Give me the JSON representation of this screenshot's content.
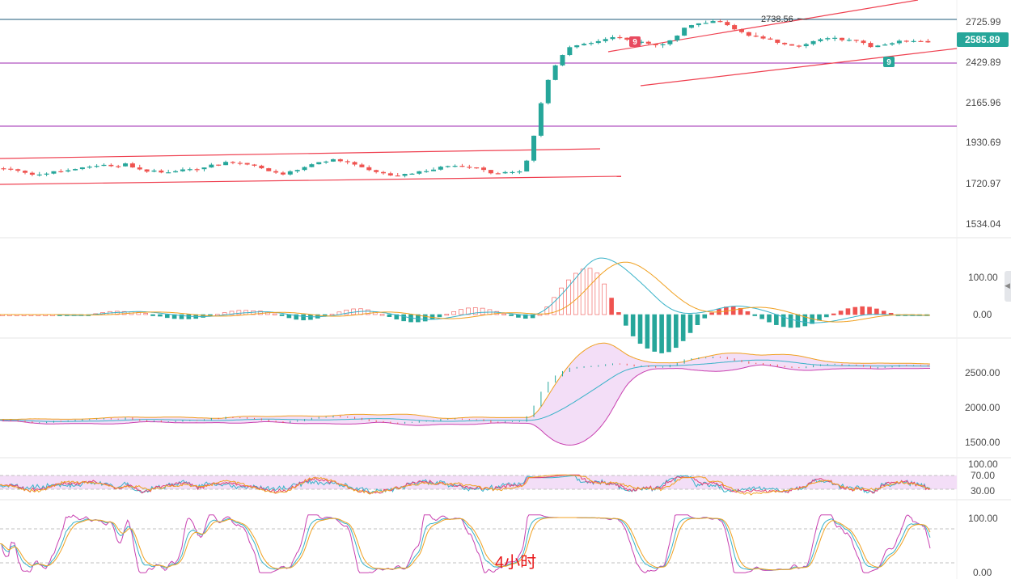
{
  "timeframe": "4小时",
  "colors": {
    "up": "#26a69a",
    "down": "#ef5350",
    "ma_fast": "#38b2c8",
    "ma_slow": "#f0a020",
    "channel": "#ef4050",
    "level": "#9c27b0",
    "resistance": "#1e5a7a"
  },
  "panels": {
    "price": {
      "ticks": [
        "2725.99",
        "2429.89",
        "2165.96",
        "1930.69",
        "1720.97",
        "1534.04"
      ],
      "current_price": "2585.89",
      "high_label": "2738.56",
      "td_markers": [
        "9",
        "9"
      ]
    },
    "macd": {
      "ticks": [
        "100.00",
        "0.00"
      ]
    },
    "bands": {
      "ticks": [
        "2500.00",
        "2000.00",
        "1500.00"
      ]
    },
    "rsi": {
      "ticks": [
        "100.00",
        "70.00",
        "30.00"
      ]
    },
    "kdj": {
      "ticks": [
        "100.00",
        "0.00"
      ]
    }
  },
  "chart_data": {
    "type": "candlestick",
    "timeframe": "4小时",
    "price_axis_ticks": [
      2725.99,
      2429.89,
      2165.96,
      1930.69,
      1720.97,
      1534.04
    ],
    "current_price": 2585.89,
    "annotated_high": 2738.56,
    "horizontal_levels": [
      2725.99,
      2440,
      2050
    ],
    "close_path": [
      [
        0,
        1810
      ],
      [
        10,
        1805
      ],
      [
        20,
        1780
      ],
      [
        30,
        1770
      ],
      [
        40,
        1790
      ],
      [
        50,
        1800
      ],
      [
        60,
        1815
      ],
      [
        70,
        1830
      ],
      [
        80,
        1820
      ],
      [
        90,
        1835
      ],
      [
        100,
        1800
      ],
      [
        110,
        1790
      ],
      [
        120,
        1790
      ],
      [
        130,
        1810
      ],
      [
        140,
        1800
      ],
      [
        150,
        1830
      ],
      [
        160,
        1845
      ],
      [
        170,
        1835
      ],
      [
        180,
        1820
      ],
      [
        190,
        1790
      ],
      [
        200,
        1775
      ],
      [
        210,
        1800
      ],
      [
        220,
        1840
      ],
      [
        230,
        1860
      ],
      [
        240,
        1860
      ],
      [
        250,
        1830
      ],
      [
        260,
        1800
      ],
      [
        270,
        1775
      ],
      [
        280,
        1765
      ],
      [
        290,
        1780
      ],
      [
        300,
        1800
      ],
      [
        310,
        1820
      ],
      [
        320,
        1830
      ],
      [
        330,
        1820
      ],
      [
        340,
        1790
      ],
      [
        350,
        1780
      ],
      [
        360,
        1790
      ],
      [
        365,
        1790
      ],
      [
        370,
        1880
      ],
      [
        375,
        2050
      ],
      [
        380,
        2250
      ],
      [
        385,
        2380
      ],
      [
        390,
        2460
      ],
      [
        395,
        2520
      ],
      [
        400,
        2560
      ],
      [
        410,
        2580
      ],
      [
        420,
        2600
      ],
      [
        430,
        2620
      ],
      [
        440,
        2600
      ],
      [
        450,
        2580
      ],
      [
        460,
        2560
      ],
      [
        470,
        2600
      ],
      [
        480,
        2680
      ],
      [
        490,
        2700
      ],
      [
        500,
        2720
      ],
      [
        510,
        2680
      ],
      [
        520,
        2640
      ],
      [
        530,
        2620
      ],
      [
        540,
        2600
      ],
      [
        550,
        2570
      ],
      [
        560,
        2560
      ],
      [
        570,
        2590
      ],
      [
        580,
        2610
      ],
      [
        590,
        2600
      ],
      [
        600,
        2590
      ],
      [
        610,
        2560
      ],
      [
        620,
        2575
      ],
      [
        630,
        2590
      ],
      [
        640,
        2600
      ],
      [
        649,
        2585.89
      ]
    ],
    "indicators": [
      "MACD",
      "Bollinger Bands",
      "RSI",
      "KDJ"
    ],
    "indicator_ticks": {
      "MACD": [
        100,
        0
      ],
      "Bollinger Bands": [
        2500,
        2000,
        1500
      ],
      "RSI": [
        100,
        70,
        30
      ],
      "KDJ": [
        100,
        0
      ]
    }
  }
}
